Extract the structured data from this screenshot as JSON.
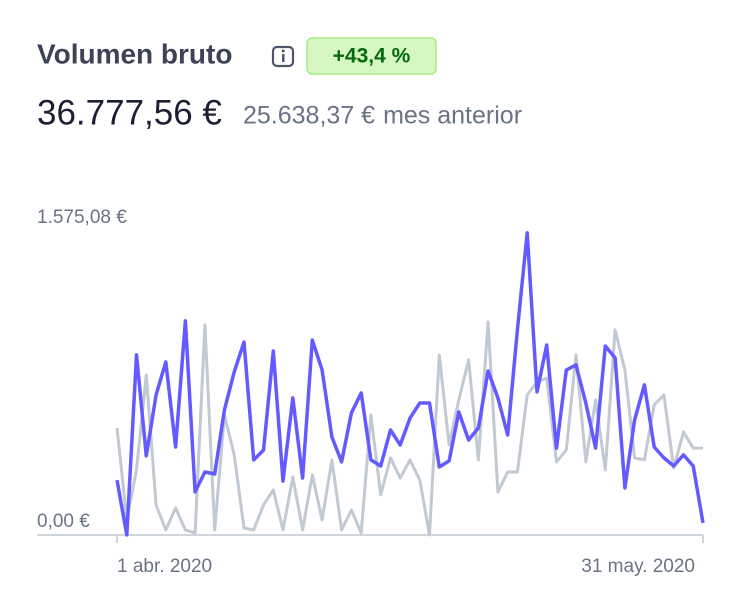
{
  "header": {
    "title": "Volumen bruto",
    "badge": "+43,4 %",
    "total": "36.777,56 €",
    "previous": "25.638,37 €",
    "previous_label": "mes anterior"
  },
  "chart_data": {
    "type": "line",
    "categories": [
      "1 abr. 2020",
      null,
      null,
      null,
      null,
      null,
      null,
      null,
      null,
      null,
      null,
      null,
      null,
      null,
      null,
      null,
      null,
      null,
      null,
      null,
      null,
      null,
      null,
      null,
      null,
      null,
      null,
      null,
      null,
      null,
      null,
      null,
      null,
      null,
      null,
      null,
      null,
      null,
      null,
      null,
      null,
      null,
      null,
      null,
      null,
      null,
      null,
      null,
      null,
      null,
      null,
      null,
      null,
      null,
      null,
      null,
      null,
      null,
      null,
      null,
      "31 may. 2020"
    ],
    "series": [
      {
        "color": "#c1c9d2",
        "values": [
          532,
          75,
          323,
          795,
          149,
          25,
          134,
          25,
          10,
          1044,
          25,
          596,
          398,
          35,
          25,
          149,
          224,
          25,
          288,
          25,
          298,
          75,
          373,
          25,
          124,
          10,
          596,
          199,
          383,
          283,
          373,
          273,
          0,
          895,
          447,
          671,
          870,
          373,
          1059,
          214,
          313,
          313,
          696,
          760,
          780,
          363,
          422,
          895,
          363,
          671,
          323,
          1019,
          820,
          383,
          373,
          646,
          696,
          333,
          512,
          432,
          432
        ]
      },
      {
        "color": "#635bff",
        "values": [
          273,
          0,
          895,
          393,
          696,
          860,
          437,
          1064,
          214,
          313,
          303,
          621,
          810,
          959,
          373,
          422,
          914,
          268,
          681,
          283,
          969,
          820,
          487,
          363,
          606,
          706,
          373,
          343,
          522,
          447,
          581,
          656,
          656,
          338,
          368,
          611,
          472,
          532,
          815,
          681,
          497,
          1019,
          1501,
          711,
          944,
          432,
          820,
          845,
          656,
          432,
          939,
          880,
          234,
          572,
          746,
          437,
          383,
          343,
          398,
          343,
          60
        ]
      }
    ],
    "ylim": [
      0,
      1575.08
    ],
    "yticks": [
      {
        "value": 0,
        "label": "0,00 €"
      },
      {
        "value": 1575.08,
        "label": "1.575,08 €"
      }
    ],
    "grid": false
  }
}
